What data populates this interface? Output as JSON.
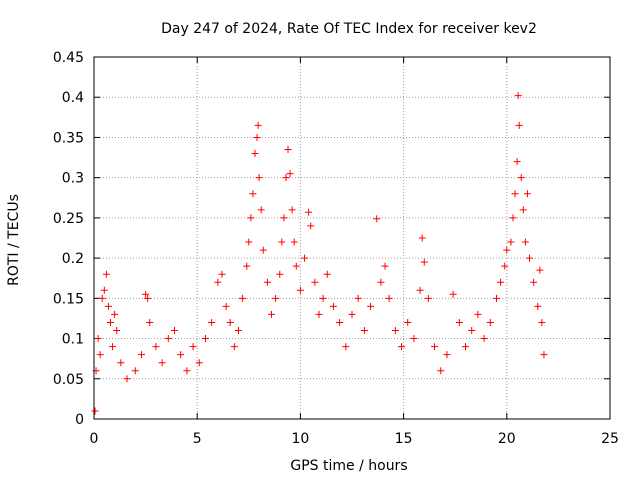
{
  "chart_data": {
    "type": "scatter",
    "title": "Day 247 of 2024, Rate Of TEC Index for receiver kev2",
    "xlabel": "GPS time / hours",
    "ylabel": "ROTI / TECUs",
    "xlim": [
      0,
      25
    ],
    "ylim": [
      0,
      0.45
    ],
    "x_ticks": [
      "0",
      "5",
      "10",
      "15",
      "20",
      "25"
    ],
    "y_ticks": [
      "0",
      "0.05",
      "0.1",
      "0.15",
      "0.2",
      "0.25",
      "0.3",
      "0.35",
      "0.4",
      "0.45"
    ],
    "x_tick_values": [
      0,
      5,
      10,
      15,
      20,
      25
    ],
    "y_tick_values": [
      0,
      0.05,
      0.1,
      0.15,
      0.2,
      0.25,
      0.3,
      0.35,
      0.4,
      0.45
    ],
    "grid": true,
    "marker": "+",
    "marker_color": "#ff0000",
    "series": [
      {
        "points": [
          [
            0.05,
            0.01
          ],
          [
            0.1,
            0.06
          ],
          [
            0.2,
            0.1
          ],
          [
            0.3,
            0.08
          ],
          [
            0.4,
            0.15
          ],
          [
            0.5,
            0.16
          ],
          [
            0.6,
            0.18
          ],
          [
            0.7,
            0.14
          ],
          [
            0.8,
            0.12
          ],
          [
            0.9,
            0.09
          ],
          [
            1.0,
            0.13
          ],
          [
            1.1,
            0.11
          ],
          [
            1.3,
            0.07
          ],
          [
            1.6,
            0.05
          ],
          [
            2.0,
            0.06
          ],
          [
            2.3,
            0.08
          ],
          [
            2.5,
            0.155
          ],
          [
            2.6,
            0.15
          ],
          [
            2.7,
            0.12
          ],
          [
            3.0,
            0.09
          ],
          [
            3.3,
            0.07
          ],
          [
            3.6,
            0.1
          ],
          [
            3.9,
            0.11
          ],
          [
            4.2,
            0.08
          ],
          [
            4.5,
            0.06
          ],
          [
            4.8,
            0.09
          ],
          [
            5.1,
            0.07
          ],
          [
            5.4,
            0.1
          ],
          [
            5.7,
            0.12
          ],
          [
            6.0,
            0.17
          ],
          [
            6.2,
            0.18
          ],
          [
            6.4,
            0.14
          ],
          [
            6.6,
            0.12
          ],
          [
            6.8,
            0.09
          ],
          [
            7.0,
            0.11
          ],
          [
            7.2,
            0.15
          ],
          [
            7.4,
            0.19
          ],
          [
            7.5,
            0.22
          ],
          [
            7.6,
            0.25
          ],
          [
            7.7,
            0.28
          ],
          [
            7.8,
            0.33
          ],
          [
            7.9,
            0.35
          ],
          [
            7.95,
            0.365
          ],
          [
            8.0,
            0.3
          ],
          [
            8.1,
            0.26
          ],
          [
            8.2,
            0.21
          ],
          [
            8.4,
            0.17
          ],
          [
            8.6,
            0.13
          ],
          [
            8.8,
            0.15
          ],
          [
            9.0,
            0.18
          ],
          [
            9.1,
            0.22
          ],
          [
            9.2,
            0.25
          ],
          [
            9.3,
            0.3
          ],
          [
            9.4,
            0.335
          ],
          [
            9.5,
            0.305
          ],
          [
            9.6,
            0.26
          ],
          [
            9.7,
            0.22
          ],
          [
            9.8,
            0.19
          ],
          [
            10.0,
            0.16
          ],
          [
            10.2,
            0.2
          ],
          [
            10.4,
            0.257
          ],
          [
            10.5,
            0.24
          ],
          [
            10.7,
            0.17
          ],
          [
            10.9,
            0.13
          ],
          [
            11.1,
            0.15
          ],
          [
            11.3,
            0.18
          ],
          [
            11.6,
            0.14
          ],
          [
            11.9,
            0.12
          ],
          [
            12.2,
            0.09
          ],
          [
            12.5,
            0.13
          ],
          [
            12.8,
            0.15
          ],
          [
            13.1,
            0.11
          ],
          [
            13.4,
            0.14
          ],
          [
            13.7,
            0.249
          ],
          [
            13.9,
            0.17
          ],
          [
            14.1,
            0.19
          ],
          [
            14.3,
            0.15
          ],
          [
            14.6,
            0.11
          ],
          [
            14.9,
            0.09
          ],
          [
            15.2,
            0.12
          ],
          [
            15.5,
            0.1
          ],
          [
            15.8,
            0.16
          ],
          [
            15.9,
            0.225
          ],
          [
            16.0,
            0.195
          ],
          [
            16.2,
            0.15
          ],
          [
            16.5,
            0.09
          ],
          [
            16.8,
            0.06
          ],
          [
            17.1,
            0.08
          ],
          [
            17.4,
            0.155
          ],
          [
            17.7,
            0.12
          ],
          [
            18.0,
            0.09
          ],
          [
            18.3,
            0.11
          ],
          [
            18.6,
            0.13
          ],
          [
            18.9,
            0.1
          ],
          [
            19.2,
            0.12
          ],
          [
            19.5,
            0.15
          ],
          [
            19.7,
            0.17
          ],
          [
            19.9,
            0.19
          ],
          [
            20.0,
            0.21
          ],
          [
            20.2,
            0.22
          ],
          [
            20.3,
            0.25
          ],
          [
            20.4,
            0.28
          ],
          [
            20.5,
            0.32
          ],
          [
            20.55,
            0.402
          ],
          [
            20.6,
            0.365
          ],
          [
            20.7,
            0.3
          ],
          [
            20.8,
            0.26
          ],
          [
            20.9,
            0.22
          ],
          [
            21.0,
            0.28
          ],
          [
            21.1,
            0.2
          ],
          [
            21.3,
            0.17
          ],
          [
            21.5,
            0.14
          ],
          [
            21.6,
            0.185
          ],
          [
            21.7,
            0.12
          ],
          [
            21.8,
            0.08
          ]
        ]
      }
    ]
  }
}
